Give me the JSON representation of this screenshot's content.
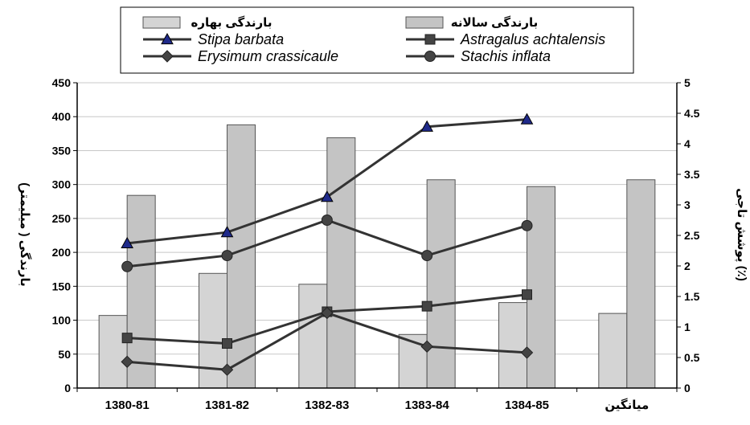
{
  "chart_data": {
    "type": "bar",
    "categories": [
      "1380-81",
      "1381-82",
      "1382-83",
      "1383-84",
      "1384-85",
      "میانگین"
    ],
    "ylabel": "بارندگی ( میلیمتر)",
    "y2label": "پوشش تاجی (٪)",
    "ylim": [
      0,
      450
    ],
    "y2lim": [
      0,
      5
    ],
    "yticks": [
      "0",
      "50",
      "100",
      "150",
      "200",
      "250",
      "300",
      "350",
      "400",
      "450"
    ],
    "y2ticks": [
      "0",
      "0.5",
      "1",
      "1.5",
      "2",
      "2.5",
      "3",
      "3.5",
      "4",
      "4.5",
      "5"
    ],
    "grid": true,
    "legend_position": "top",
    "bar_series": [
      {
        "name": "بارندگی بهاره",
        "color": "#d4d4d4",
        "values": [
          107,
          169,
          153,
          79,
          126,
          110
        ]
      },
      {
        "name": "بارندگی سالانه",
        "color": "#c4c4c4",
        "values": [
          284,
          388,
          369,
          307,
          297,
          307
        ]
      }
    ],
    "line_series": [
      {
        "name": "Stipa barbata",
        "marker": "triangle",
        "marker_color": "#1f2a8a",
        "values": [
          2.37,
          2.55,
          3.13,
          4.28,
          4.4
        ]
      },
      {
        "name": "Astragalus achtalensis",
        "marker": "square",
        "marker_color": "#444444",
        "values": [
          0.82,
          0.73,
          1.25,
          1.34,
          1.53
        ]
      },
      {
        "name": "Erysimum crassicaule",
        "marker": "diamond",
        "marker_color": "#444444",
        "values": [
          0.43,
          0.3,
          1.23,
          0.68,
          0.58
        ]
      },
      {
        "name": "Stachis inflata",
        "marker": "circle",
        "marker_color": "#444444",
        "values": [
          1.99,
          2.17,
          2.75,
          2.17,
          2.66
        ]
      }
    ],
    "line_color": "#333333"
  }
}
